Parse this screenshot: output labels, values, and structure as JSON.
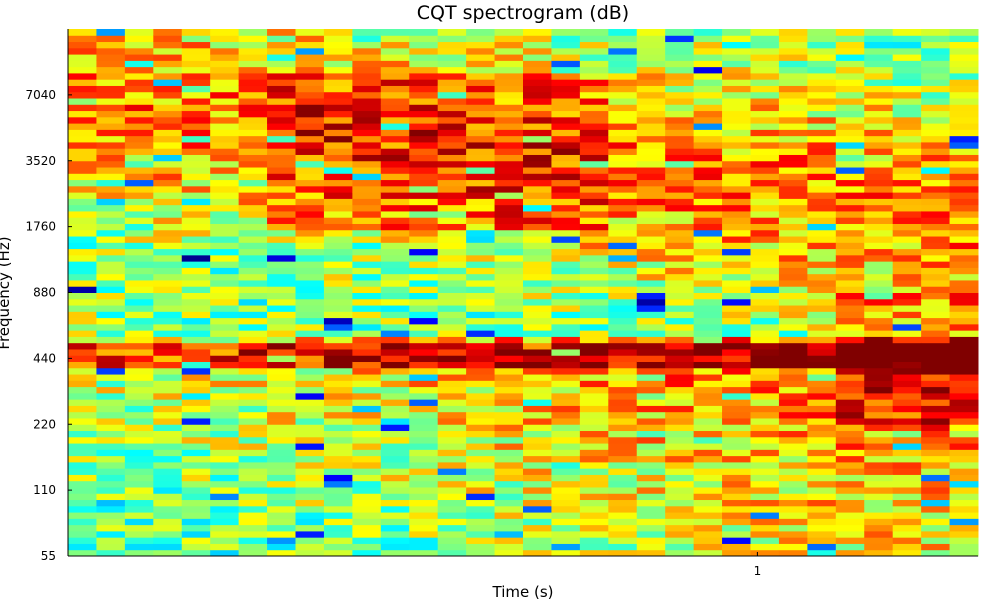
{
  "chart_data": {
    "type": "heatmap",
    "title": "CQT spectrogram (dB)",
    "xlabel": "Time (s)",
    "ylabel": "Frequency (Hz)",
    "colormap": "jet",
    "x_ticks": [
      {
        "value": 1,
        "label": "1"
      }
    ],
    "xlim": [
      0,
      1.32
    ],
    "y_scale": "log2",
    "ylim": [
      55,
      14080
    ],
    "y_ticks": [
      {
        "value": 55,
        "label": "55"
      },
      {
        "value": 110,
        "label": "110"
      },
      {
        "value": 220,
        "label": "220"
      },
      {
        "value": 440,
        "label": "440"
      },
      {
        "value": 880,
        "label": "880"
      },
      {
        "value": 1760,
        "label": "1760"
      },
      {
        "value": 3520,
        "label": "3520"
      },
      {
        "value": 7040,
        "label": "7040"
      }
    ],
    "time_frames": 32,
    "freq_bins": 84,
    "db_range": [
      -80,
      0
    ],
    "seed": 1337
  }
}
